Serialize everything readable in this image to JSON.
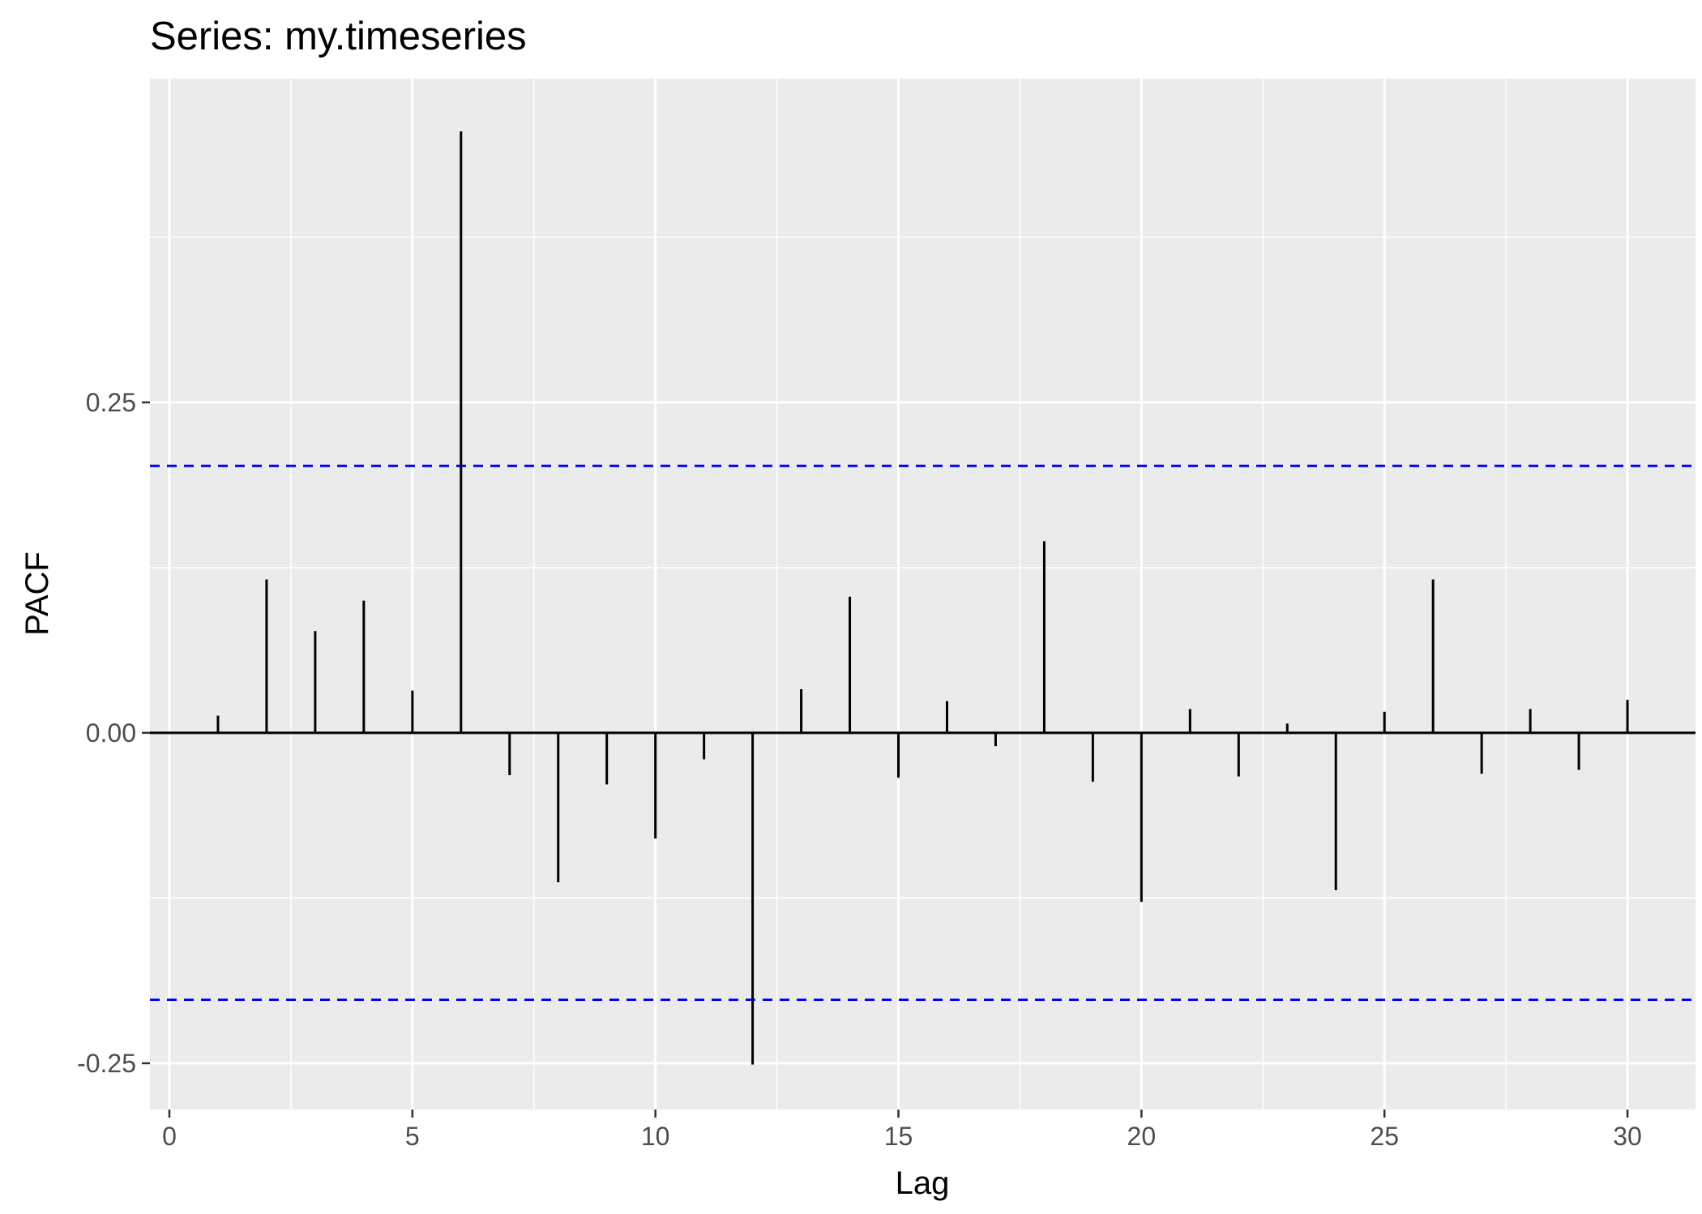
{
  "chart_data": {
    "type": "bar",
    "title": "Series: my.timeseries",
    "xlabel": "Lag",
    "ylabel": "PACF",
    "x": [
      1,
      2,
      3,
      4,
      5,
      6,
      7,
      8,
      9,
      10,
      11,
      12,
      13,
      14,
      15,
      16,
      17,
      18,
      19,
      20,
      21,
      22,
      23,
      24,
      25,
      26,
      27,
      28,
      29,
      30
    ],
    "values": [
      0.013,
      0.116,
      0.077,
      0.1,
      0.032,
      0.455,
      -0.032,
      -0.113,
      -0.039,
      -0.08,
      -0.02,
      -0.251,
      0.033,
      0.103,
      -0.034,
      0.024,
      -0.01,
      0.145,
      -0.037,
      -0.128,
      0.018,
      -0.033,
      0.007,
      -0.119,
      0.016,
      0.116,
      -0.031,
      0.018,
      -0.028,
      0.025
    ],
    "confidence_limits": [
      0.202,
      -0.202
    ],
    "xlim": [
      -0.4,
      31.4
    ],
    "ylim": [
      -0.285,
      0.495
    ],
    "x_ticks": [
      0,
      5,
      10,
      15,
      20,
      25,
      30
    ],
    "x_tick_labels": [
      "0",
      "5",
      "10",
      "15",
      "20",
      "25",
      "30"
    ],
    "y_ticks": [
      -0.25,
      0,
      0.25
    ],
    "y_tick_labels": [
      "-0.25",
      "0.00",
      "0.25"
    ],
    "grid": true,
    "colors": {
      "panel_background": "#ebebeb",
      "grid": "#ffffff",
      "bars": "#000000",
      "confidence_lines": "#0000ff",
      "zero_line": "#000000"
    }
  }
}
